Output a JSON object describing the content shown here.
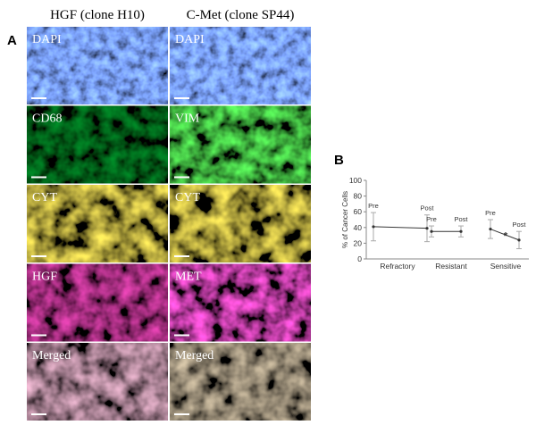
{
  "figure": {
    "panel_a_label": "A",
    "panel_b_label": "B",
    "columns": [
      "HGF (clone H10)",
      "C-Met (clone SP44)"
    ],
    "panels": [
      [
        "DAPI",
        "DAPI"
      ],
      [
        "CD68",
        "VIM"
      ],
      [
        "CYT",
        "CYT"
      ],
      [
        "HGF",
        "MET"
      ],
      [
        "Merged",
        "Merged"
      ]
    ]
  },
  "chart_data": {
    "type": "line",
    "y_label": "% of Cancer Cells",
    "categories": [
      "Refractory",
      "Resistant",
      "Sensitive"
    ],
    "series": [
      {
        "name": "Pre",
        "color": "#333333",
        "values": [
          41,
          35,
          38
        ],
        "errors": [
          18,
          7,
          12
        ]
      },
      {
        "name": "Post",
        "color": "#333333",
        "values": [
          39,
          35,
          24
        ],
        "errors": [
          17,
          7,
          11
        ]
      }
    ],
    "ylim": [
      0,
      100
    ],
    "yticks": [
      0,
      20,
      40,
      60,
      80,
      100
    ],
    "annotation": "*"
  }
}
